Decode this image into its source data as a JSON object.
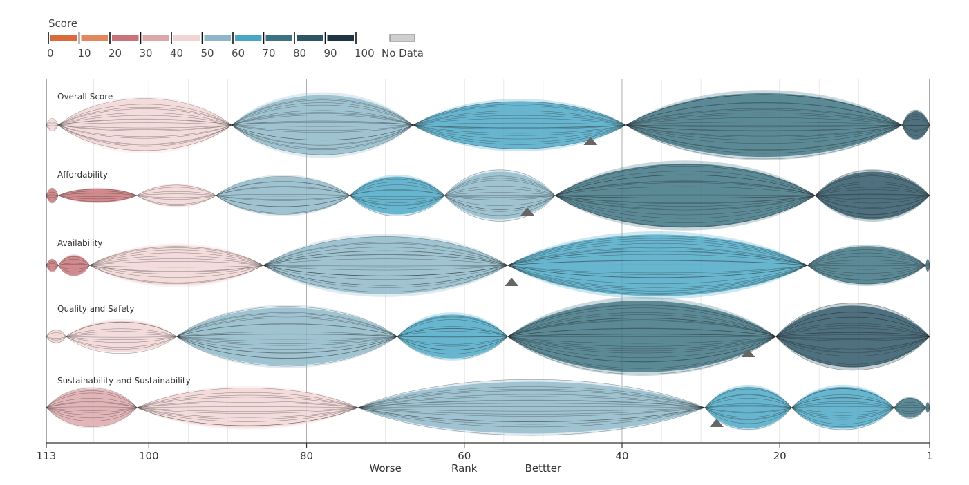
{
  "chart_data": {
    "type": "ribbon-bundle",
    "legend": {
      "title": "Score",
      "bins": [
        {
          "range": [
            0,
            10
          ],
          "color": "#d96a3b"
        },
        {
          "range": [
            10,
            20
          ],
          "color": "#e3875f"
        },
        {
          "range": [
            20,
            30
          ],
          "color": "#c8747a"
        },
        {
          "range": [
            30,
            40
          ],
          "color": "#dca7aa"
        },
        {
          "range": [
            40,
            50
          ],
          "color": "#f1d5d4"
        },
        {
          "range": [
            50,
            60
          ],
          "color": "#8db7c8"
        },
        {
          "range": [
            60,
            70
          ],
          "color": "#4aa6c4"
        },
        {
          "range": [
            70,
            80
          ],
          "color": "#3d7283"
        },
        {
          "range": [
            80,
            90
          ],
          "color": "#2d5566"
        },
        {
          "range": [
            90,
            100
          ],
          "color": "#1d3443"
        }
      ],
      "ticks": [
        "0",
        "10",
        "20",
        "30",
        "40",
        "50",
        "60",
        "70",
        "80",
        "90",
        "100"
      ],
      "no_data_label": "No Data",
      "no_data_color": "#cfcfcf"
    },
    "x_axis": {
      "domain": [
        113,
        1
      ],
      "ticks": [
        {
          "value": 113,
          "label": "113"
        },
        {
          "value": 100,
          "label": "100"
        },
        {
          "value": 80,
          "label": "80"
        },
        {
          "value": 60,
          "label": "60"
        },
        {
          "value": 40,
          "label": "40"
        },
        {
          "value": 20,
          "label": "20"
        },
        {
          "value": 1,
          "label": "1"
        }
      ],
      "minor_grid": [
        107,
        95,
        90,
        75,
        70,
        55,
        50,
        35,
        30,
        15,
        10
      ],
      "captions": [
        {
          "value": 70,
          "label": "Worse"
        },
        {
          "value": 60,
          "label": "Rank"
        },
        {
          "value": 50,
          "label": "Bettter"
        }
      ]
    },
    "rows": [
      {
        "label": "Overall Score",
        "marker_rank": 44,
        "segments": [
          {
            "from": 113,
            "to": 111.5,
            "bin": 4,
            "amp": 0.3
          },
          {
            "from": 111.5,
            "to": 89.5,
            "bin": 4,
            "amp": 1.3
          },
          {
            "from": 89.5,
            "to": 66.5,
            "bin": 5,
            "amp": 1.5
          },
          {
            "from": 66.5,
            "to": 39.5,
            "bin": 6,
            "amp": 1.2
          },
          {
            "from": 39.5,
            "to": 4.5,
            "bin": 7,
            "amp": 1.6
          },
          {
            "from": 4.5,
            "to": 1,
            "bin": 8,
            "amp": 0.7
          }
        ]
      },
      {
        "label": "Affordability",
        "marker_rank": 52,
        "segments": [
          {
            "from": 113,
            "to": 111.5,
            "bin": 2,
            "amp": 0.35
          },
          {
            "from": 111.5,
            "to": 101.5,
            "bin": 2,
            "amp": 0.35
          },
          {
            "from": 101.5,
            "to": 91.5,
            "bin": 4,
            "amp": 0.55
          },
          {
            "from": 91.5,
            "to": 74.5,
            "bin": 5,
            "amp": 0.95
          },
          {
            "from": 74.5,
            "to": 62.5,
            "bin": 6,
            "amp": 0.95
          },
          {
            "from": 62.5,
            "to": 48.5,
            "bin": 5,
            "amp": 1.2
          },
          {
            "from": 48.5,
            "to": 15.5,
            "bin": 7,
            "amp": 1.6
          },
          {
            "from": 15.5,
            "to": 1,
            "bin": 8,
            "amp": 1.2
          }
        ]
      },
      {
        "label": "Availability",
        "marker_rank": 54,
        "segments": [
          {
            "from": 113,
            "to": 111.5,
            "bin": 2,
            "amp": 0.3
          },
          {
            "from": 111.5,
            "to": 107.5,
            "bin": 2,
            "amp": 0.5
          },
          {
            "from": 107.5,
            "to": 85.5,
            "bin": 4,
            "amp": 1.0
          },
          {
            "from": 85.5,
            "to": 54.5,
            "bin": 5,
            "amp": 1.45
          },
          {
            "from": 54.5,
            "to": 16.5,
            "bin": 6,
            "amp": 1.55
          },
          {
            "from": 16.5,
            "to": 1.5,
            "bin": 7,
            "amp": 0.95
          },
          {
            "from": 1.5,
            "to": 1,
            "bin": 7,
            "amp": 0.3
          }
        ]
      },
      {
        "label": "Quality and Safety",
        "marker_rank": 24,
        "segments": [
          {
            "from": 113,
            "to": 110.5,
            "bin": 4,
            "amp": 0.35
          },
          {
            "from": 110.5,
            "to": 96.5,
            "bin": 4,
            "amp": 0.8
          },
          {
            "from": 96.5,
            "to": 68.5,
            "bin": 5,
            "amp": 1.45
          },
          {
            "from": 68.5,
            "to": 54.5,
            "bin": 6,
            "amp": 1.1
          },
          {
            "from": 54.5,
            "to": 20.5,
            "bin": 7,
            "amp": 1.8
          },
          {
            "from": 20.5,
            "to": 1,
            "bin": 8,
            "amp": 1.55
          }
        ]
      },
      {
        "label": "Sustainability and Sustainability",
        "marker_rank": 28,
        "segments": [
          {
            "from": 113,
            "to": 101.5,
            "bin": 3,
            "amp": 0.95
          },
          {
            "from": 101.5,
            "to": 73.5,
            "bin": 4,
            "amp": 1.0
          },
          {
            "from": 73.5,
            "to": 29.5,
            "bin": 5,
            "amp": 1.3
          },
          {
            "from": 29.5,
            "to": 18.5,
            "bin": 6,
            "amp": 1.05
          },
          {
            "from": 18.5,
            "to": 5.5,
            "bin": 6,
            "amp": 1.05
          },
          {
            "from": 5.5,
            "to": 1.5,
            "bin": 7,
            "amp": 0.5
          },
          {
            "from": 1.5,
            "to": 1,
            "bin": 7,
            "amp": 0.25
          }
        ]
      }
    ]
  }
}
